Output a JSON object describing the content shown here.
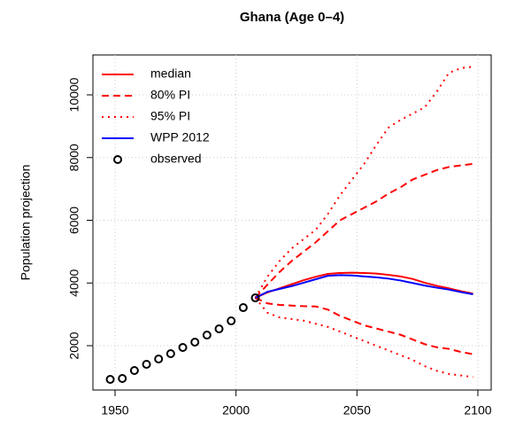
{
  "chart_data": {
    "type": "line",
    "title": "Ghana (Age 0–4)",
    "y_label": "Population projection",
    "xlim": [
      1940.85,
      2105.5
    ],
    "ylim": [
      587,
      11272
    ],
    "xticks": [
      1950,
      2000,
      2050,
      2100
    ],
    "yticks": [
      2000,
      4000,
      6000,
      8000,
      10000
    ],
    "grid": true,
    "legend_position": "top-left",
    "series": [
      {
        "name": "median",
        "color": "#ff0000",
        "dash": "solid",
        "marker": "none",
        "x": [
          2008,
          2013,
          2018,
          2023,
          2028,
          2033,
          2038,
          2043,
          2048,
          2053,
          2058,
          2063,
          2068,
          2073,
          2078,
          2083,
          2088,
          2093,
          2098
        ],
        "values": [
          3526,
          3700,
          3830,
          3960,
          4090,
          4200,
          4290,
          4320,
          4330,
          4320,
          4300,
          4260,
          4210,
          4130,
          4010,
          3910,
          3830,
          3740,
          3660
        ]
      },
      {
        "name": "80% PI",
        "color": "#ff0000",
        "dash": "dashed",
        "marker": "none",
        "x": [
          2008,
          2013,
          2018,
          2023,
          2028,
          2033,
          2038,
          2043,
          2048,
          2053,
          2058,
          2063,
          2068,
          2073,
          2078,
          2083,
          2088,
          2093,
          2098
        ],
        "values": [
          3526,
          3950,
          4350,
          4700,
          5000,
          5300,
          5650,
          6000,
          6200,
          6400,
          6600,
          6850,
          7050,
          7300,
          7450,
          7600,
          7700,
          7750,
          7800
        ]
      },
      {
        "name": null,
        "color": "#ff0000",
        "dash": "dashed",
        "marker": "none",
        "x": [
          2008,
          2013,
          2018,
          2023,
          2028,
          2033,
          2038,
          2043,
          2048,
          2053,
          2058,
          2063,
          2068,
          2073,
          2078,
          2083,
          2088,
          2093,
          2098
        ],
        "values": [
          3526,
          3350,
          3300,
          3280,
          3260,
          3250,
          3150,
          2950,
          2800,
          2650,
          2550,
          2450,
          2350,
          2200,
          2050,
          1950,
          1900,
          1800,
          1730
        ]
      },
      {
        "name": "95% PI",
        "color": "#ff0000",
        "dash": "dotted",
        "marker": "none",
        "x": [
          2008,
          2013,
          2018,
          2023,
          2028,
          2033,
          2038,
          2043,
          2048,
          2053,
          2058,
          2063,
          2068,
          2073,
          2078,
          2083,
          2088,
          2093,
          2098
        ],
        "values": [
          3526,
          4200,
          4700,
          5100,
          5400,
          5700,
          6200,
          6800,
          7300,
          7800,
          8400,
          8950,
          9200,
          9400,
          9600,
          10100,
          10700,
          10850,
          10900
        ]
      },
      {
        "name": null,
        "color": "#ff0000",
        "dash": "dotted",
        "marker": "none",
        "x": [
          2008,
          2013,
          2018,
          2023,
          2028,
          2033,
          2038,
          2043,
          2048,
          2053,
          2058,
          2063,
          2068,
          2073,
          2078,
          2083,
          2088,
          2093,
          2098
        ],
        "values": [
          3526,
          3050,
          2900,
          2850,
          2800,
          2700,
          2600,
          2450,
          2300,
          2150,
          2000,
          1850,
          1700,
          1550,
          1350,
          1200,
          1100,
          1050,
          1000
        ]
      },
      {
        "name": "WPP 2012",
        "color": "#0000ff",
        "dash": "solid",
        "marker": "none",
        "x": [
          2008,
          2013,
          2018,
          2023,
          2028,
          2033,
          2038,
          2043,
          2048,
          2053,
          2058,
          2063,
          2068,
          2073,
          2078,
          2083,
          2088,
          2093,
          2098
        ],
        "values": [
          3526,
          3720,
          3810,
          3900,
          4010,
          4120,
          4230,
          4250,
          4240,
          4210,
          4180,
          4140,
          4080,
          4000,
          3920,
          3850,
          3790,
          3710,
          3640
        ]
      },
      {
        "name": "observed",
        "color": "#000000",
        "dash": "none",
        "marker": "circle",
        "x": [
          1948,
          1953,
          1958,
          1963,
          1968,
          1973,
          1978,
          1983,
          1988,
          1993,
          1998,
          2003,
          2008
        ],
        "values": [
          926,
          955,
          1209,
          1407,
          1576,
          1746,
          1944,
          2113,
          2339,
          2537,
          2791,
          3215,
          3526
        ]
      }
    ]
  }
}
